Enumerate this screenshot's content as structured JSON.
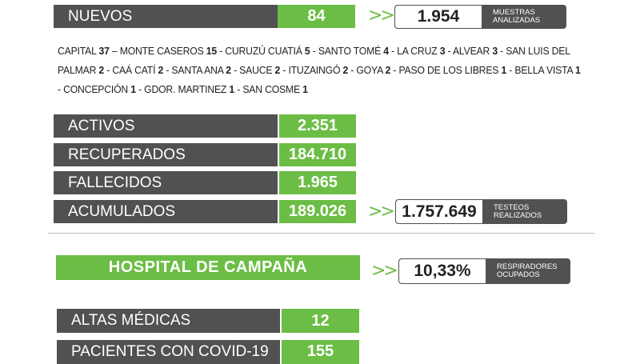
{
  "nuevos": {
    "label": "NUEVOS",
    "value": "84",
    "muestras_value": "1.954",
    "muestras_caption_1": "MUESTRAS",
    "muestras_caption_2": "ANALIZADAS"
  },
  "arrows": ">>",
  "departments": [
    {
      "name": "CAPITAL",
      "count": "37",
      "sep": " – "
    },
    {
      "name": "MONTE CASEROS",
      "count": "15",
      "sep": " - "
    },
    {
      "name": "CURUZÚ CUATIÁ",
      "count": "5",
      "sep": " - "
    },
    {
      "name": "SANTO TOMÉ",
      "count": "4",
      "sep": " - "
    },
    {
      "name": "LA CRUZ",
      "count": "3",
      "sep": " - "
    },
    {
      "name": "ALVEAR",
      "count": "3",
      "sep": " - "
    },
    {
      "name": "SAN LUIS DEL PALMAR",
      "count": "2",
      "sep": " - "
    },
    {
      "name": "CAÁ CATÍ",
      "count": "2",
      "sep": " - "
    },
    {
      "name": "SANTA ANA",
      "count": "2",
      "sep": " - "
    },
    {
      "name": "SAUCE",
      "count": "2",
      "sep": " - "
    },
    {
      "name": "ITUZAINGÓ",
      "count": "2",
      "sep": " - "
    },
    {
      "name": "GOYA",
      "count": "2",
      "sep": " - "
    },
    {
      "name": "PASO DE LOS LIBRES",
      "count": "1",
      "sep": " - "
    },
    {
      "name": "BELLA VISTA",
      "count": "1",
      "sep": " - "
    },
    {
      "name": "CONCEPCIÓN",
      "count": "1",
      "sep": " - "
    },
    {
      "name": "GDOR. MARTINEZ",
      "count": "1",
      "sep": " - "
    },
    {
      "name": "SAN COSME",
      "count": "1",
      "sep": ""
    }
  ],
  "stats": {
    "activos_label": "ACTIVOS",
    "activos_value": "2.351",
    "recuperados_label": "RECUPERADOS",
    "recuperados_value": "184.710",
    "fallecidos_label": "FALLECIDOS",
    "fallecidos_value": "1.965",
    "acumulados_label": "ACUMULADOS",
    "acumulados_value": "189.026",
    "testeos_value": "1.757.649",
    "testeos_caption_1": "TESTEOS",
    "testeos_caption_2": "REALIZADOS"
  },
  "hospital": {
    "title": "HOSPITAL DE CAMPAÑA",
    "respiradores_value": "10,33%",
    "respiradores_caption_1": "RESPIRADORES",
    "respiradores_caption_2": "OCUPADOS",
    "altas_label": "ALTAS MÉDICAS",
    "altas_value": "12",
    "pacientes_label": "PACIENTES CON COVID-19",
    "pacientes_value": "155"
  },
  "colors": {
    "green": "#6cbd45",
    "gray": "#515151"
  }
}
